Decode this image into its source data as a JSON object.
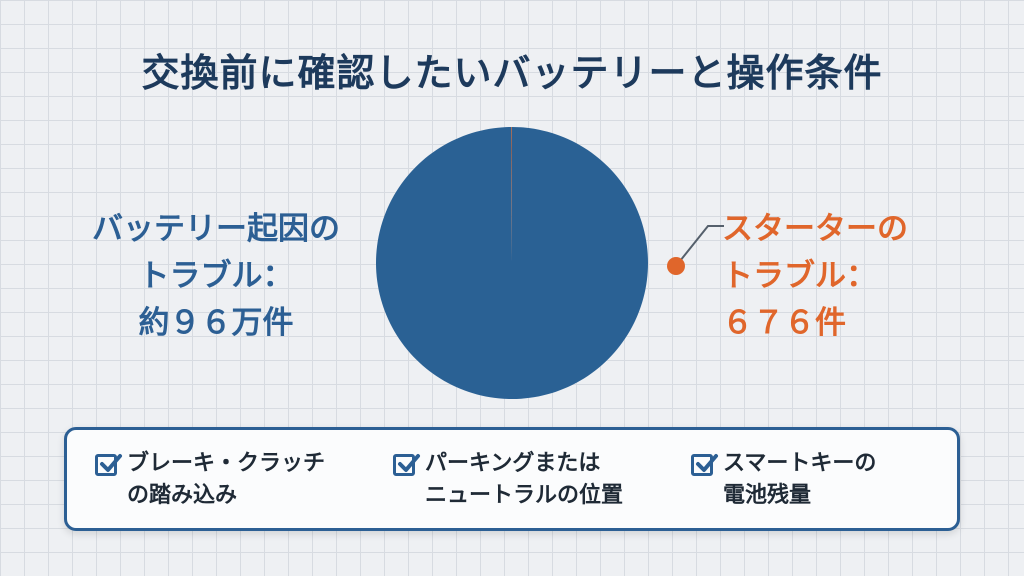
{
  "title": "交換前に確認したいバッテリーと操作条件",
  "chart_data": {
    "type": "pie",
    "slices": [
      {
        "name": "バッテリー起因のトラブル",
        "value": 960000,
        "color": "#2a6194"
      },
      {
        "name": "スターターのトラブル",
        "value": 676,
        "color": "#e0662b"
      }
    ]
  },
  "labels": {
    "left": [
      "バッテリー起因の",
      "トラブル：",
      "約９６万件"
    ],
    "right": [
      "スターターの",
      "トラブル：",
      "６７６件"
    ]
  },
  "checklist": [
    {
      "icon": "checkbox-checked-icon",
      "lines": [
        "ブレーキ・クラッチ",
        "の踏み込み"
      ]
    },
    {
      "icon": "checkbox-checked-icon",
      "lines": [
        "パーキングまたは",
        "ニュートラルの位置"
      ]
    },
    {
      "icon": "checkbox-checked-icon",
      "lines": [
        "スマートキーの",
        "電池残量"
      ]
    }
  ],
  "colors": {
    "accent": "#2c5f94",
    "highlight": "#e0662b",
    "title": "#1d3a5c"
  }
}
